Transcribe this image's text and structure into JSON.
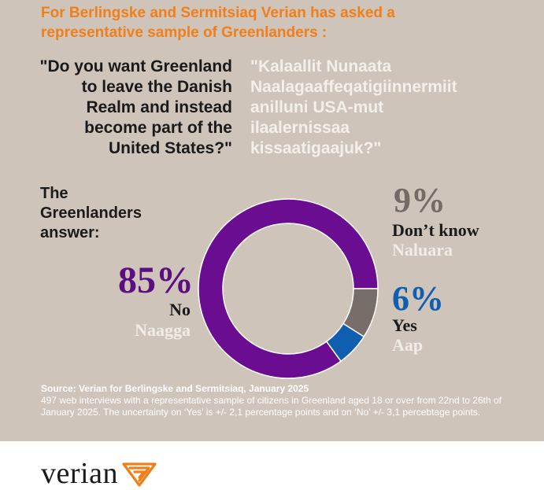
{
  "header": {
    "line1": "For Berlingske and Sermitsiaq Verian has asked a",
    "line2": "representative sample of Greenlanders :"
  },
  "question": {
    "en_lines": [
      "\"Do you want Greenland",
      "to leave the Danish",
      "Realm and instead",
      "become part of the",
      "United States?\""
    ],
    "kl_lines": [
      "\"Kalaallit Nunaata",
      "Naalagaaffeqatigiinnermiit",
      "anilluni USA-mut",
      "ilaalernissaa",
      "kissaatigaajuk?\""
    ]
  },
  "answer_label_lines": [
    "The",
    "Greenlanders",
    "answer:"
  ],
  "chart_data": {
    "type": "pie",
    "donut": true,
    "values": [
      85,
      9,
      6
    ],
    "categories": [
      "No",
      "Don't know",
      "Yes"
    ],
    "colors": [
      "#6a0d91",
      "#786e69",
      "#0f5eb0"
    ],
    "labels": [
      {
        "pct": "85%",
        "en": "No",
        "kl": "Naagga"
      },
      {
        "pct": "9%",
        "en": "Don’t know",
        "kl": "Naluara"
      },
      {
        "pct": "6%",
        "en": "Yes",
        "kl": "Aap"
      }
    ]
  },
  "source": {
    "title": "Source: Verian for Berlingske and Sermitsiaq, January 2025",
    "body": "497 web interviews with a representative sample of citizens in Greenland aged 18 or over from 22nd to 26th of January 2025. The uncertainty on ‘Yes’ is +/- 2,1 percentage points and on ‘No’ +/- 3,1 percebtage points."
  },
  "logo": {
    "text": "verian",
    "color": "#f07f1a"
  }
}
